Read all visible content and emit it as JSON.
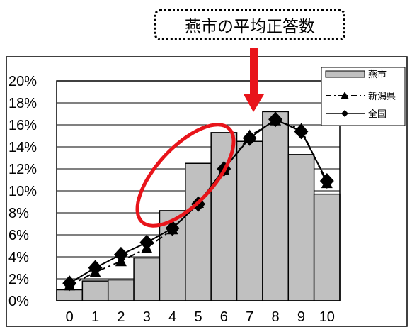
{
  "callout": {
    "text": "燕市の平均正答数"
  },
  "chart_data": {
    "type": "bar",
    "categories": [
      "0",
      "1",
      "2",
      "3",
      "4",
      "5",
      "6",
      "7",
      "8",
      "9",
      "10"
    ],
    "ylim": [
      0,
      20
    ],
    "yticks": [
      "0%",
      "2%",
      "4%",
      "6%",
      "8%",
      "10%",
      "12%",
      "14%",
      "16%",
      "18%",
      "20%"
    ],
    "grid": true,
    "legend_position": "top-right",
    "series": [
      {
        "name": "燕市",
        "kind": "bar",
        "color": "#c0c0c0",
        "values": [
          1.0,
          1.8,
          1.9,
          3.9,
          8.2,
          12.5,
          15.3,
          14.5,
          17.2,
          13.3,
          9.7
        ]
      },
      {
        "name": "新潟県",
        "kind": "line",
        "style": "dash-dot",
        "marker": "triangle",
        "values": [
          1.4,
          2.6,
          3.6,
          4.8,
          6.5,
          8.9,
          11.9,
          15.0,
          16.4,
          15.6,
          10.7
        ]
      },
      {
        "name": "全国",
        "kind": "line",
        "style": "solid",
        "marker": "diamond",
        "values": [
          1.6,
          3.0,
          4.2,
          5.3,
          6.6,
          8.8,
          12.0,
          14.8,
          16.5,
          15.4,
          10.9
        ]
      }
    ]
  }
}
